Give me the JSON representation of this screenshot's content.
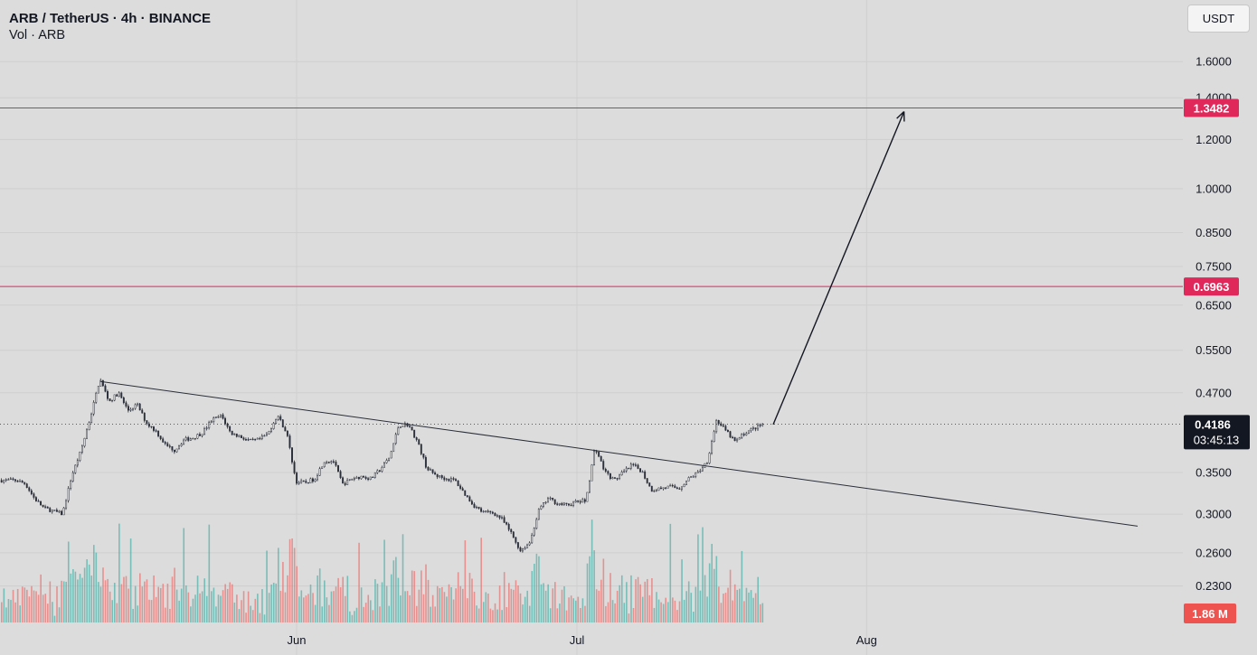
{
  "header": {
    "symbol_line": "ARB / TetherUS · 4h · BINANCE",
    "volume_line": "Vol · ARB"
  },
  "currency_button": "USDT",
  "colors": {
    "background": "#dcdcdc",
    "bull_volume": "#26a69a",
    "bear_volume": "#ef5350",
    "resistance_line": "#e0285a",
    "price_label_bg": "#131722",
    "volume_label_bg": "#ef5350"
  },
  "chart_data": {
    "type": "candlestick",
    "scale": "log",
    "ylim": [
      0.205,
      1.88
    ],
    "y_ticks": [
      "1.6000",
      "1.4000",
      "1.2000",
      "1.0000",
      "0.8500",
      "0.7500",
      "0.6500",
      "0.5500",
      "0.4700",
      "0.3500",
      "0.3000",
      "0.2600",
      "0.2300"
    ],
    "x_ticks": [
      {
        "label": "Jun",
        "date": "2023-06-01"
      },
      {
        "label": "Jul",
        "date": "2023-07-01"
      },
      {
        "label": "Aug",
        "date": "2023-08-01"
      }
    ],
    "price_path": [
      [
        "2023-05-02",
        0.34
      ],
      [
        "2023-05-03",
        0.336
      ],
      [
        "2023-05-04",
        0.318
      ],
      [
        "2023-05-05",
        0.307
      ],
      [
        "2023-05-07",
        0.3
      ],
      [
        "2023-05-08",
        0.346
      ],
      [
        "2023-05-09",
        0.38
      ],
      [
        "2023-05-10",
        0.43
      ],
      [
        "2023-05-11",
        0.495
      ],
      [
        "2023-05-12",
        0.455
      ],
      [
        "2023-05-13",
        0.47
      ],
      [
        "2023-05-14",
        0.44
      ],
      [
        "2023-05-15",
        0.45
      ],
      [
        "2023-05-16",
        0.42
      ],
      [
        "2023-05-17",
        0.408
      ],
      [
        "2023-05-18",
        0.388
      ],
      [
        "2023-05-19",
        0.38
      ],
      [
        "2023-05-20",
        0.395
      ],
      [
        "2023-05-21",
        0.398
      ],
      [
        "2023-05-22",
        0.406
      ],
      [
        "2023-05-23",
        0.425
      ],
      [
        "2023-05-24",
        0.432
      ],
      [
        "2023-05-25",
        0.405
      ],
      [
        "2023-05-26",
        0.4
      ],
      [
        "2023-05-27",
        0.393
      ],
      [
        "2023-05-28",
        0.395
      ],
      [
        "2023-05-29",
        0.404
      ],
      [
        "2023-05-30",
        0.433
      ],
      [
        "2023-05-31",
        0.405
      ],
      [
        "2023-06-01",
        0.338
      ],
      [
        "2023-06-02",
        0.337
      ],
      [
        "2023-06-03",
        0.342
      ],
      [
        "2023-06-04",
        0.365
      ],
      [
        "2023-06-05",
        0.365
      ],
      [
        "2023-06-06",
        0.335
      ],
      [
        "2023-06-07",
        0.342
      ],
      [
        "2023-06-08",
        0.345
      ],
      [
        "2023-06-09",
        0.342
      ],
      [
        "2023-06-10",
        0.354
      ],
      [
        "2023-06-11",
        0.37
      ],
      [
        "2023-06-12",
        0.417
      ],
      [
        "2023-06-13",
        0.418
      ],
      [
        "2023-06-14",
        0.392
      ],
      [
        "2023-06-15",
        0.355
      ],
      [
        "2023-06-16",
        0.346
      ],
      [
        "2023-06-17",
        0.342
      ],
      [
        "2023-06-18",
        0.34
      ],
      [
        "2023-06-19",
        0.324
      ],
      [
        "2023-06-20",
        0.31
      ],
      [
        "2023-06-21",
        0.302
      ],
      [
        "2023-06-22",
        0.302
      ],
      [
        "2023-06-23",
        0.295
      ],
      [
        "2023-06-24",
        0.28
      ],
      [
        "2023-06-25",
        0.262
      ],
      [
        "2023-06-26",
        0.27
      ],
      [
        "2023-06-27",
        0.305
      ],
      [
        "2023-06-28",
        0.318
      ],
      [
        "2023-06-29",
        0.312
      ],
      [
        "2023-06-30",
        0.31
      ],
      [
        "2023-07-01",
        0.314
      ],
      [
        "2023-07-02",
        0.315
      ],
      [
        "2023-07-03",
        0.385
      ],
      [
        "2023-07-04",
        0.352
      ],
      [
        "2023-07-05",
        0.34
      ],
      [
        "2023-07-06",
        0.35
      ],
      [
        "2023-07-07",
        0.36
      ],
      [
        "2023-07-08",
        0.352
      ],
      [
        "2023-07-09",
        0.328
      ],
      [
        "2023-07-10",
        0.33
      ],
      [
        "2023-07-11",
        0.332
      ],
      [
        "2023-07-12",
        0.33
      ],
      [
        "2023-07-13",
        0.342
      ],
      [
        "2023-07-14",
        0.35
      ],
      [
        "2023-07-15",
        0.365
      ],
      [
        "2023-07-16",
        0.425
      ],
      [
        "2023-07-17",
        0.408
      ],
      [
        "2023-07-18",
        0.392
      ],
      [
        "2023-07-19",
        0.405
      ],
      [
        "2023-07-20",
        0.412
      ],
      [
        "2023-07-21",
        0.4186
      ]
    ],
    "volume_scale_m": 3.5,
    "annotations": {
      "trendline": {
        "from": [
          "2023-05-11",
          0.49
        ],
        "to": [
          "2023-08-30",
          0.287
        ]
      },
      "resistance_lines": [
        {
          "value": 1.3482,
          "label": "1.3482"
        },
        {
          "value": 0.6963,
          "label": "0.6963"
        }
      ],
      "arrow": {
        "from": [
          "2023-07-22",
          0.418
        ],
        "to": [
          "2023-08-05",
          1.33
        ]
      }
    },
    "last_price": {
      "value": 0.4186,
      "label": "0.4186",
      "countdown": "03:45:13"
    },
    "volume_label": "1.86 M"
  }
}
